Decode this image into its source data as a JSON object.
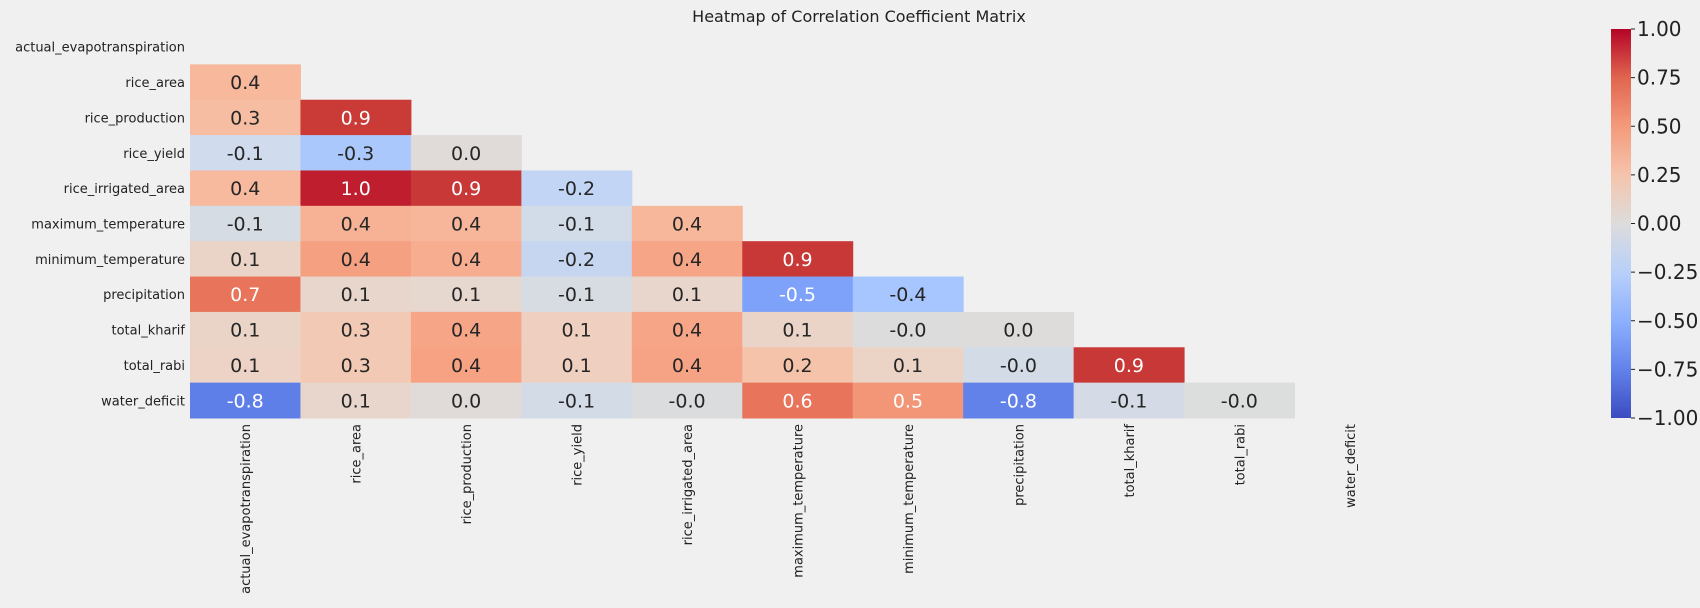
{
  "chart_data": {
    "type": "heatmap",
    "title": "Heatmap of Correlation Coefficient Matrix",
    "variables": [
      "actual_evapotranspiration",
      "rice_area",
      "rice_production",
      "rice_yield",
      "rice_irrigated_area",
      "maximum_temperature",
      "minimum_temperature",
      "precipitation",
      "total_kharif",
      "total_rabi",
      "water_deficit"
    ],
    "mask": "upper-triangle-including-diagonal",
    "lower_triangle": [
      {
        "row": 1,
        "cols": [
          0.4
        ]
      },
      {
        "row": 2,
        "cols": [
          0.3,
          0.9
        ]
      },
      {
        "row": 3,
        "cols": [
          -0.1,
          -0.3,
          0.0
        ]
      },
      {
        "row": 4,
        "cols": [
          0.4,
          1.0,
          0.9,
          -0.2
        ]
      },
      {
        "row": 5,
        "cols": [
          -0.1,
          0.4,
          0.4,
          -0.1,
          0.4
        ]
      },
      {
        "row": 6,
        "cols": [
          0.1,
          0.4,
          0.4,
          -0.2,
          0.4,
          0.9
        ]
      },
      {
        "row": 7,
        "cols": [
          0.7,
          0.1,
          0.1,
          -0.1,
          0.1,
          -0.5,
          -0.4
        ]
      },
      {
        "row": 8,
        "cols": [
          0.1,
          0.3,
          0.4,
          0.1,
          0.4,
          0.1,
          -0.0,
          0.0
        ]
      },
      {
        "row": 9,
        "cols": [
          0.1,
          0.3,
          0.4,
          0.1,
          0.4,
          0.2,
          0.1,
          -0.0,
          0.9
        ]
      },
      {
        "row": 10,
        "cols": [
          -0.8,
          0.1,
          0.0,
          -0.1,
          -0.0,
          0.6,
          0.5,
          -0.8,
          -0.1,
          -0.0
        ]
      }
    ],
    "cell_colors": [
      [
        "#f0f0f0"
      ],
      [
        "#f7b89c",
        "#f0f0f0"
      ],
      [
        "#f6bda2",
        "#ca3b37",
        "#f0f0f0"
      ],
      [
        "#d0dbee",
        "#abc8fd",
        "#e0dbd8",
        "#f0f0f0"
      ],
      [
        "#f7ba9f",
        "#be1e2d",
        "#c83836",
        "#c3d5f4",
        "#f0f0f0"
      ],
      [
        "#d6dce4",
        "#f7b194",
        "#f7b599",
        "#d2dbe8",
        "#f7b79b",
        "#f0f0f0"
      ],
      [
        "#ead4c8",
        "#f5a081",
        "#f7ad90",
        "#c6d6f1",
        "#f6a586",
        "#c83836",
        "#f0f0f0"
      ],
      [
        "#e7745b",
        "#e8d6cc",
        "#e6d7cf",
        "#d7dce3",
        "#e8d6cc",
        "#7ea1fa",
        "#a7c5fe",
        "#f0f0f0"
      ],
      [
        "#ead4c8",
        "#f2c9b4",
        "#f6a586",
        "#efcfbf",
        "#f6a586",
        "#ead4c8",
        "#dddcdc",
        "#dedcdb",
        "#f0f0f0"
      ],
      [
        "#ecd3c5",
        "#f2c9b4",
        "#f6a283",
        "#efcfbf",
        "#f6a385",
        "#f5c2aa",
        "#ebd3c6",
        "#d3dbe7",
        "#c83836",
        "#f0f0f0"
      ],
      [
        "#5f7fe8",
        "#e8d6cc",
        "#e0dbd8",
        "#d3dbe7",
        "#dbdcde",
        "#e7745b",
        "#f39577",
        "#6282ea",
        "#d4dbe6",
        "#dcdddd",
        "#f0f0f0"
      ]
    ],
    "colorbar": {
      "cmap": "coolwarm",
      "range": [
        -1.0,
        1.0
      ],
      "ticks": [
        "1.00",
        "0.75",
        "0.50",
        "0.25",
        "0.00",
        "−0.25",
        "−0.50",
        "−0.75",
        "−1.00"
      ],
      "tick_values": [
        1.0,
        0.75,
        0.5,
        0.25,
        0.0,
        -0.25,
        -0.5,
        -0.75,
        -1.0
      ]
    },
    "grid": false,
    "legend": "colorbar-right"
  }
}
